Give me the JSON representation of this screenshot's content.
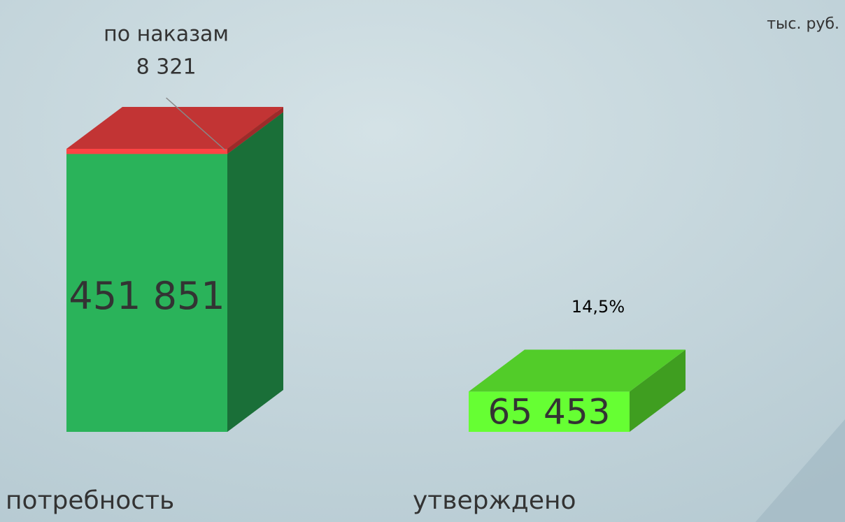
{
  "chart_data": {
    "type": "bar3d",
    "unit_label": "тыс. руб.",
    "categories": [
      "потребность",
      "утверждено"
    ],
    "series": [
      {
        "colors": [
          "#2ab35a",
          "#66ff33"
        ],
        "values": [
          451851,
          65453
        ],
        "value_labels": [
          "451 851",
          "65 453"
        ]
      },
      {
        "name": "по наказам",
        "color": "#ff4444",
        "values": [
          8321,
          null
        ],
        "value_labels": [
          "8 321",
          null
        ]
      }
    ],
    "annotation": "14,5%"
  }
}
